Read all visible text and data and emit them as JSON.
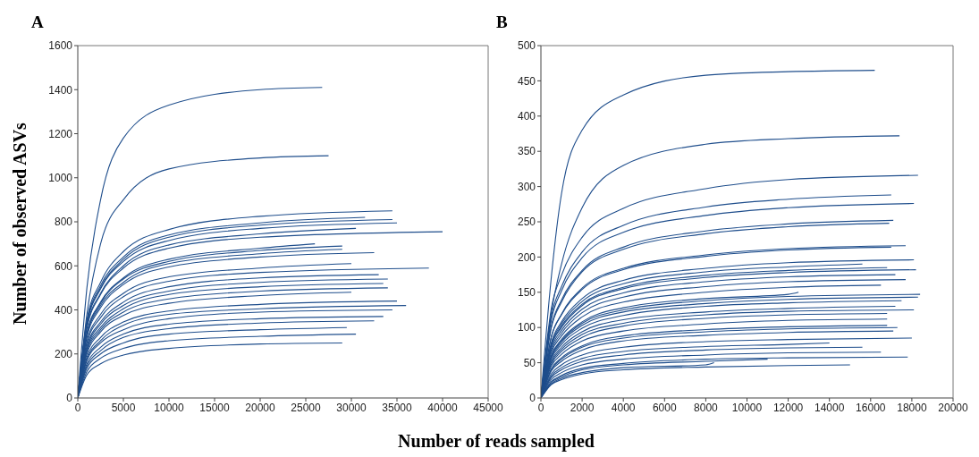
{
  "chart_data": [
    {
      "type": "line",
      "title": "A",
      "ylabel": "Number of observed ASVs",
      "xlabel": "Number of reads sampled",
      "color": "#1f4e8c",
      "xlim": [
        0,
        45000
      ],
      "xticks": [
        0,
        5000,
        10000,
        15000,
        20000,
        25000,
        30000,
        35000,
        40000,
        45000
      ],
      "ylim": [
        0,
        1600
      ],
      "yticks": [
        0,
        200,
        400,
        600,
        800,
        1000,
        1200,
        1400,
        1600
      ],
      "series": [
        {
          "x": [
            0,
            1000,
            2500,
            5000,
            10000,
            20000,
            26800
          ],
          "values": [
            0,
            500,
            900,
            1180,
            1330,
            1400,
            1410
          ]
        },
        {
          "x": [
            0,
            1000,
            2500,
            5000,
            10000,
            20000,
            27500
          ],
          "values": [
            0,
            380,
            700,
            900,
            1040,
            1090,
            1100
          ]
        },
        {
          "x": [
            0,
            1000,
            2500,
            5000,
            10000,
            20000,
            34500
          ],
          "values": [
            0,
            355,
            525,
            665,
            765,
            825,
            850
          ]
        },
        {
          "x": [
            0,
            1000,
            2500,
            5000,
            10000,
            20000,
            31500
          ],
          "values": [
            0,
            345,
            510,
            640,
            740,
            795,
            820
          ]
        },
        {
          "x": [
            0,
            1000,
            2500,
            5000,
            10000,
            20000,
            34500
          ],
          "values": [
            0,
            340,
            500,
            630,
            730,
            785,
            810
          ]
        },
        {
          "x": [
            0,
            1000,
            2500,
            5000,
            10000,
            20000,
            35000
          ],
          "values": [
            0,
            335,
            495,
            620,
            715,
            770,
            795
          ]
        },
        {
          "x": [
            0,
            1000,
            2500,
            5000,
            10000,
            20000,
            30500
          ],
          "values": [
            0,
            325,
            475,
            600,
            695,
            745,
            770
          ]
        },
        {
          "x": [
            0,
            1000,
            2500,
            5000,
            10000,
            20000,
            40000
          ],
          "values": [
            0,
            315,
            470,
            590,
            680,
            730,
            755
          ]
        },
        {
          "x": [
            0,
            1000,
            2500,
            5000,
            10000,
            20000,
            26000
          ],
          "values": [
            0,
            295,
            435,
            545,
            630,
            680,
            700
          ]
        },
        {
          "x": [
            0,
            1000,
            2500,
            5000,
            10000,
            20000,
            29000
          ],
          "values": [
            0,
            290,
            430,
            540,
            620,
            670,
            690
          ]
        },
        {
          "x": [
            0,
            1000,
            2500,
            5000,
            10000,
            20000,
            29000
          ],
          "values": [
            0,
            285,
            420,
            525,
            610,
            655,
            675
          ]
        },
        {
          "x": [
            0,
            1000,
            2500,
            5000,
            10000,
            20000,
            32500
          ],
          "values": [
            0,
            275,
            410,
            515,
            595,
            640,
            660
          ]
        },
        {
          "x": [
            0,
            1000,
            2500,
            5000,
            10000,
            20000,
            30000
          ],
          "values": [
            0,
            255,
            380,
            475,
            550,
            590,
            610
          ]
        },
        {
          "x": [
            0,
            1000,
            2500,
            5000,
            10000,
            20000,
            38500
          ],
          "values": [
            0,
            250,
            365,
            460,
            530,
            570,
            590
          ]
        },
        {
          "x": [
            0,
            1000,
            2500,
            5000,
            10000,
            20000,
            33000
          ],
          "values": [
            0,
            235,
            345,
            435,
            505,
            545,
            560
          ]
        },
        {
          "x": [
            0,
            1000,
            2500,
            5000,
            10000,
            20000,
            34000
          ],
          "values": [
            0,
            225,
            335,
            420,
            485,
            525,
            540
          ]
        },
        {
          "x": [
            0,
            1000,
            2500,
            5000,
            10000,
            20000,
            33500
          ],
          "values": [
            0,
            220,
            320,
            405,
            470,
            505,
            520
          ]
        },
        {
          "x": [
            0,
            1000,
            2500,
            5000,
            10000,
            20000,
            34000
          ],
          "values": [
            0,
            210,
            310,
            390,
            450,
            485,
            500
          ]
        },
        {
          "x": [
            0,
            1000,
            2500,
            5000,
            10000,
            20000,
            30000
          ],
          "values": [
            0,
            200,
            300,
            375,
            430,
            465,
            480
          ]
        },
        {
          "x": [
            0,
            1000,
            2500,
            5000,
            10000,
            20000,
            35000
          ],
          "values": [
            0,
            185,
            275,
            345,
            395,
            425,
            440
          ]
        },
        {
          "x": [
            0,
            1000,
            2500,
            5000,
            10000,
            20000,
            36000
          ],
          "values": [
            0,
            175,
            260,
            330,
            380,
            405,
            420
          ]
        },
        {
          "x": [
            0,
            1000,
            2500,
            5000,
            10000,
            20000,
            34500
          ],
          "values": [
            0,
            170,
            250,
            310,
            360,
            390,
            400
          ]
        },
        {
          "x": [
            0,
            1000,
            2500,
            5000,
            10000,
            20000,
            33500
          ],
          "values": [
            0,
            155,
            230,
            290,
            335,
            360,
            370
          ]
        },
        {
          "x": [
            0,
            1000,
            2500,
            5000,
            10000,
            20000,
            32500
          ],
          "values": [
            0,
            145,
            215,
            275,
            315,
            340,
            350
          ]
        },
        {
          "x": [
            0,
            1000,
            2500,
            5000,
            10000,
            20000,
            29500
          ],
          "values": [
            0,
            135,
            200,
            250,
            290,
            310,
            320
          ]
        },
        {
          "x": [
            0,
            1000,
            2500,
            5000,
            10000,
            20000,
            30500
          ],
          "values": [
            0,
            120,
            180,
            225,
            260,
            280,
            290
          ]
        },
        {
          "x": [
            0,
            1000,
            2500,
            5000,
            10000,
            20000,
            29000
          ],
          "values": [
            0,
            105,
            155,
            195,
            225,
            245,
            250
          ]
        }
      ]
    },
    {
      "type": "line",
      "title": "B",
      "color": "#1f4e8c",
      "xlim": [
        0,
        20000
      ],
      "xticks": [
        0,
        2000,
        4000,
        6000,
        8000,
        10000,
        12000,
        14000,
        16000,
        18000,
        20000
      ],
      "ylim": [
        0,
        500
      ],
      "yticks": [
        0,
        50,
        100,
        150,
        200,
        250,
        300,
        350,
        400,
        450,
        500
      ],
      "series": [
        {
          "x": [
            0,
            500,
            1000,
            2000,
            4000,
            8000,
            12000,
            16200
          ],
          "values": [
            0,
            170,
            290,
            380,
            430,
            458,
            463,
            465
          ]
        },
        {
          "x": [
            0,
            500,
            1000,
            2000,
            4000,
            8000,
            12000,
            17400
          ],
          "values": [
            0,
            120,
            190,
            270,
            330,
            360,
            368,
            372
          ]
        },
        {
          "x": [
            0,
            500,
            1000,
            2000,
            4000,
            8000,
            12000,
            18300
          ],
          "values": [
            0,
            126,
            174,
            228,
            269,
            297,
            310,
            316
          ]
        },
        {
          "x": [
            0,
            500,
            1000,
            2000,
            4000,
            8000,
            12000,
            17000
          ],
          "values": [
            0,
            115,
            158,
            207,
            245,
            271,
            282,
            288
          ]
        },
        {
          "x": [
            0,
            500,
            1000,
            2000,
            4000,
            8000,
            12000,
            18100
          ],
          "values": [
            0,
            110,
            152,
            199,
            235,
            259,
            270,
            276
          ]
        },
        {
          "x": [
            0,
            500,
            1000,
            2000,
            4000,
            8000,
            12000,
            17100
          ],
          "values": [
            0,
            101,
            139,
            181,
            214,
            237,
            247,
            252
          ]
        },
        {
          "x": [
            0,
            500,
            1000,
            2000,
            4000,
            8000,
            12000,
            16900
          ],
          "values": [
            0,
            99,
            136,
            179,
            211,
            233,
            243,
            248
          ]
        },
        {
          "x": [
            0,
            500,
            1000,
            2000,
            4000,
            8000,
            12000,
            17700
          ],
          "values": [
            0,
            86,
            119,
            156,
            184,
            203,
            212,
            216
          ]
        },
        {
          "x": [
            0,
            500,
            1000,
            2000,
            4000,
            8000,
            12000,
            17000
          ],
          "values": [
            0,
            86,
            118,
            154,
            182,
            201,
            210,
            214
          ]
        },
        {
          "x": [
            0,
            500,
            1000,
            2000,
            4000,
            8000,
            12000,
            18100
          ],
          "values": [
            0,
            78,
            108,
            141,
            167,
            184,
            192,
            196
          ]
        },
        {
          "x": [
            0,
            500,
            1000,
            2000,
            4000,
            8000,
            12000,
            15600
          ],
          "values": [
            0,
            76,
            105,
            137,
            162,
            179,
            186,
            190
          ]
        },
        {
          "x": [
            0,
            500,
            1000,
            2000,
            4000,
            8000,
            12000,
            16800
          ],
          "values": [
            0,
            74,
            102,
            133,
            157,
            174,
            181,
            185
          ]
        },
        {
          "x": [
            0,
            500,
            1000,
            2000,
            4000,
            8000,
            12000,
            18200
          ],
          "values": [
            0,
            73,
            100,
            131,
            155,
            171,
            178,
            182
          ]
        },
        {
          "x": [
            0,
            500,
            1000,
            2000,
            4000,
            8000,
            12000,
            17200
          ],
          "values": [
            0,
            70,
            96,
            126,
            149,
            165,
            172,
            175
          ]
        },
        {
          "x": [
            0,
            500,
            1000,
            2000,
            4000,
            8000,
            12000,
            17700
          ],
          "values": [
            0,
            67,
            92,
            121,
            143,
            158,
            165,
            168
          ]
        },
        {
          "x": [
            0,
            500,
            1000,
            2000,
            4000,
            8000,
            12000,
            16500
          ],
          "values": [
            0,
            64,
            88,
            115,
            136,
            150,
            157,
            160
          ]
        },
        {
          "x": [
            0,
            500,
            1000,
            2000,
            4000,
            8000,
            12000,
            12500
          ],
          "values": [
            0,
            60,
            83,
            108,
            128,
            141,
            147,
            150
          ]
        },
        {
          "x": [
            0,
            500,
            1000,
            2000,
            4000,
            8000,
            12000,
            18400
          ],
          "values": [
            0,
            59,
            81,
            106,
            125,
            138,
            144,
            147
          ]
        },
        {
          "x": [
            0,
            500,
            1000,
            2000,
            4000,
            8000,
            12000,
            18300
          ],
          "values": [
            0,
            57,
            79,
            103,
            122,
            134,
            140,
            143
          ]
        },
        {
          "x": [
            0,
            500,
            1000,
            2000,
            4000,
            8000,
            12000,
            17500
          ],
          "values": [
            0,
            55,
            76,
            99,
            117,
            130,
            135,
            138
          ]
        },
        {
          "x": [
            0,
            500,
            1000,
            2000,
            4000,
            8000,
            12000,
            17200
          ],
          "values": [
            0,
            52,
            72,
            94,
            111,
            122,
            127,
            130
          ]
        },
        {
          "x": [
            0,
            500,
            1000,
            2000,
            4000,
            8000,
            12000,
            18100
          ],
          "values": [
            0,
            50,
            69,
            90,
            106,
            118,
            123,
            125
          ]
        },
        {
          "x": [
            0,
            500,
            1000,
            2000,
            4000,
            8000,
            12000,
            16800
          ],
          "values": [
            0,
            48,
            66,
            86,
            102,
            113,
            118,
            120
          ]
        },
        {
          "x": [
            0,
            500,
            1000,
            2000,
            4000,
            8000,
            12000,
            16800
          ],
          "values": [
            0,
            45,
            62,
            81,
            95,
            105,
            110,
            112
          ]
        },
        {
          "x": [
            0,
            500,
            1000,
            2000,
            4000,
            8000,
            12000,
            16800
          ],
          "values": [
            0,
            41,
            57,
            74,
            88,
            97,
            101,
            103
          ]
        },
        {
          "x": [
            0,
            500,
            1000,
            2000,
            4000,
            8000,
            12000,
            17300
          ],
          "values": [
            0,
            40,
            55,
            72,
            85,
            94,
            98,
            100
          ]
        },
        {
          "x": [
            0,
            500,
            1000,
            2000,
            4000,
            8000,
            12000,
            17100
          ],
          "values": [
            0,
            38,
            52,
            68,
            81,
            89,
            93,
            95
          ]
        },
        {
          "x": [
            0,
            500,
            1000,
            2000,
            4000,
            8000,
            12000,
            18000
          ],
          "values": [
            0,
            34,
            47,
            61,
            72,
            80,
            83,
            85
          ]
        },
        {
          "x": [
            0,
            500,
            1000,
            2000,
            4000,
            8000,
            12000,
            14000
          ],
          "values": [
            0,
            31,
            43,
            56,
            66,
            73,
            76,
            78
          ]
        },
        {
          "x": [
            0,
            500,
            1000,
            2000,
            4000,
            8000,
            12000,
            15600
          ],
          "values": [
            0,
            29,
            40,
            52,
            61,
            68,
            71,
            72
          ]
        },
        {
          "x": [
            0,
            500,
            1000,
            2000,
            4000,
            8000,
            12000,
            16500
          ],
          "values": [
            0,
            26,
            36,
            47,
            55,
            61,
            64,
            65
          ]
        },
        {
          "x": [
            0,
            500,
            1000,
            2000,
            4000,
            8000,
            12000,
            17800
          ],
          "values": [
            0,
            23,
            32,
            42,
            49,
            55,
            57,
            58
          ]
        },
        {
          "x": [
            0,
            500,
            1000,
            2000,
            4000,
            8000,
            11000
          ],
          "values": [
            0,
            22,
            30,
            40,
            47,
            52,
            55
          ]
        },
        {
          "x": [
            0,
            500,
            1000,
            2000,
            4000,
            8000,
            8400
          ],
          "values": [
            0,
            20,
            28,
            36,
            43,
            47,
            50
          ]
        },
        {
          "x": [
            0,
            500,
            1000,
            2000,
            4000,
            8000,
            12000,
            15000
          ],
          "values": [
            0,
            19,
            26,
            34,
            40,
            44,
            46,
            47
          ]
        }
      ]
    }
  ]
}
